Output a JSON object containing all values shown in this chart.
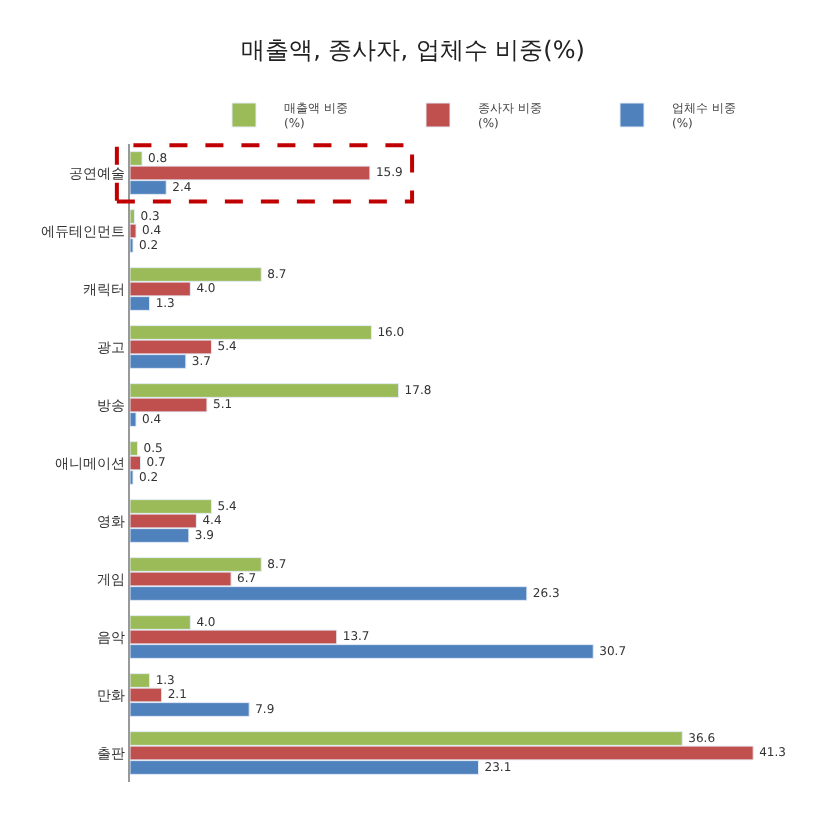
{
  "chart_data": {
    "type": "bar",
    "orientation": "horizontal",
    "title": "매출액, 종사자, 업체수 비중(%)",
    "categories": [
      "공연예술",
      "에듀테인먼트",
      "캐릭터",
      "광고",
      "방송",
      "애니메이션",
      "영화",
      "게임",
      "음악",
      "만화",
      "출판"
    ],
    "series": [
      {
        "name": "매출액 비중\n(%)",
        "color": "#9bbb59",
        "values": [
          0.8,
          0.3,
          8.7,
          16.0,
          17.8,
          0.5,
          5.4,
          8.7,
          4.0,
          1.3,
          36.6
        ],
        "value_labels": [
          "0.8",
          "0.3",
          "8.7",
          "16.0",
          "17.8",
          "0.5",
          "5.4",
          "8.7",
          "4.0",
          "1.3",
          "36.6"
        ]
      },
      {
        "name": "종사자 비중\n(%)",
        "color": "#c0504d",
        "values": [
          15.9,
          0.4,
          4.0,
          5.4,
          5.1,
          0.7,
          4.4,
          6.7,
          13.7,
          2.1,
          41.3
        ],
        "value_labels": [
          "15.9",
          "0.4",
          "4.0",
          "5.4",
          "5.1",
          "0.7",
          "4.4",
          "6.7",
          "13.7",
          "2.1",
          "41.3"
        ]
      },
      {
        "name": "업체수 비중\n(%)",
        "color": "#4f81bd",
        "values": [
          2.4,
          0.2,
          1.3,
          3.7,
          0.4,
          0.2,
          3.9,
          26.3,
          30.7,
          7.9,
          23.1
        ],
        "value_labels": [
          "2.4",
          "0.2",
          "1.3",
          "3.7",
          "0.4",
          "0.2",
          "3.9",
          "26.3",
          "30.7",
          "7.9",
          "23.1"
        ]
      }
    ],
    "legend": "top right"
  }
}
